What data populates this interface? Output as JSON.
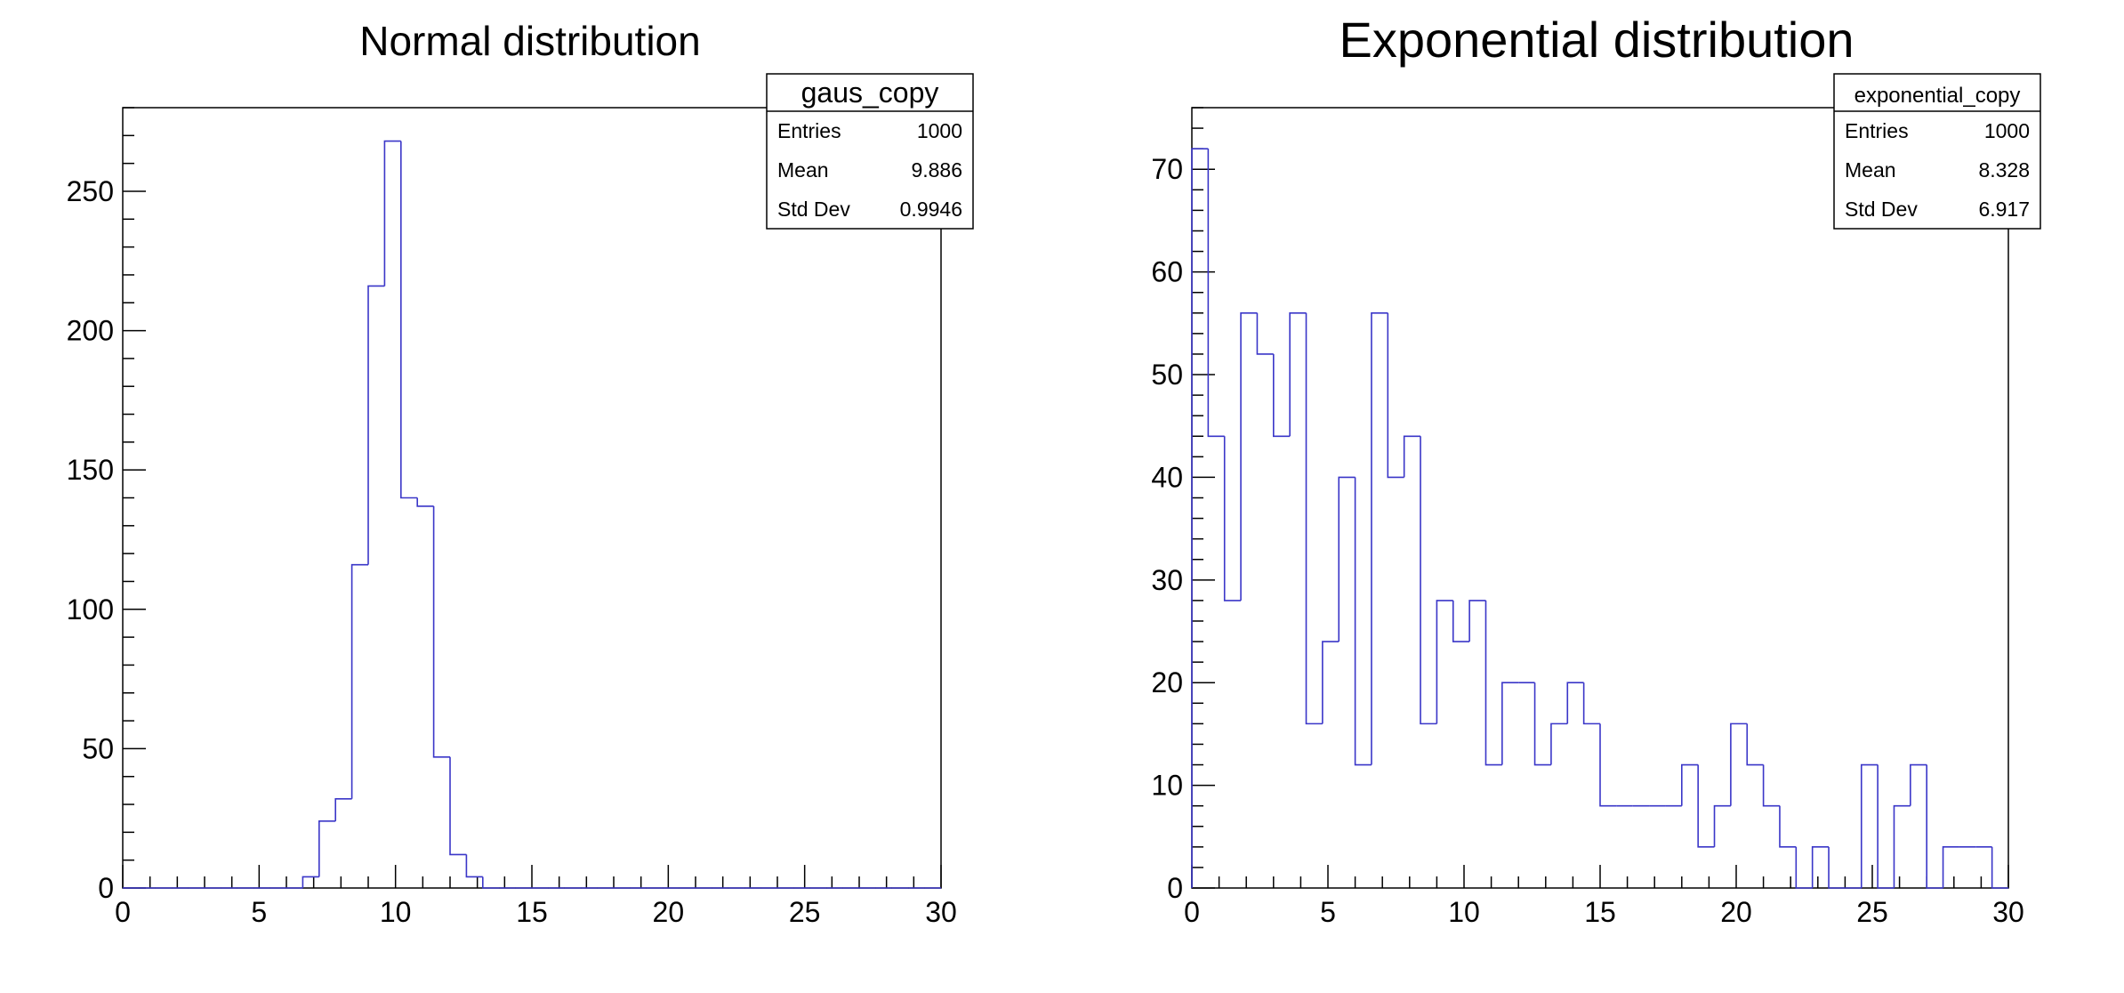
{
  "chart_data": [
    {
      "type": "bar",
      "histogram": true,
      "title": "Normal distribution",
      "xlabel": "",
      "ylabel": "",
      "xlim": [
        0,
        30
      ],
      "ylim": [
        0,
        280
      ],
      "x_ticks": [
        0,
        5,
        10,
        15,
        20,
        25,
        30
      ],
      "y_ticks": [
        0,
        50,
        100,
        150,
        200,
        250
      ],
      "bin_edges": [
        0.0,
        0.6,
        1.2,
        1.8,
        2.4,
        3.0,
        3.6,
        4.2,
        4.8,
        5.4,
        6.0,
        6.6,
        7.2,
        7.8,
        8.4,
        9.0,
        9.6,
        10.2,
        10.8,
        11.4,
        12.0,
        12.6,
        13.2,
        13.8,
        14.4,
        15.0,
        15.6,
        16.2,
        16.8,
        17.4,
        18.0,
        18.6,
        19.2,
        19.8,
        20.4,
        21.0,
        21.6,
        22.2,
        22.8,
        23.4,
        24.0,
        24.6,
        25.2,
        25.8,
        26.4,
        27.0,
        27.6,
        28.2,
        28.8,
        29.4,
        30.0
      ],
      "series": [
        {
          "values": [
            0,
            0,
            0,
            0,
            0,
            0,
            0,
            0,
            0,
            0,
            0,
            4,
            24,
            32,
            116,
            216,
            268,
            140,
            137,
            47,
            12,
            4,
            0,
            0,
            0,
            0,
            0,
            0,
            0,
            0,
            0,
            0,
            0,
            0,
            0,
            0,
            0,
            0,
            0,
            0,
            0,
            0,
            0,
            0,
            0,
            0,
            0,
            0,
            0,
            0
          ],
          "color": "#3a36c8"
        }
      ],
      "stats": {
        "name": "gaus_copy",
        "rows": [
          {
            "label": "Entries",
            "value": "1000"
          },
          {
            "label": "Mean",
            "value": "9.886"
          },
          {
            "label": "Std Dev",
            "value": "0.9946"
          }
        ]
      },
      "grid": false,
      "legend": "top-right"
    },
    {
      "type": "bar",
      "histogram": true,
      "title": "Exponential distribution",
      "xlabel": "",
      "ylabel": "",
      "xlim": [
        0,
        30
      ],
      "ylim": [
        0,
        76
      ],
      "x_ticks": [
        0,
        5,
        10,
        15,
        20,
        25,
        30
      ],
      "y_ticks": [
        0,
        10,
        20,
        30,
        40,
        50,
        60,
        70
      ],
      "bin_edges": [
        0.0,
        0.6,
        1.2,
        1.8,
        2.4,
        3.0,
        3.6,
        4.2,
        4.8,
        5.4,
        6.0,
        6.6,
        7.2,
        7.8,
        8.4,
        9.0,
        9.6,
        10.2,
        10.8,
        11.4,
        12.0,
        12.6,
        13.2,
        13.8,
        14.4,
        15.0,
        15.6,
        16.2,
        16.8,
        17.4,
        18.0,
        18.6,
        19.2,
        19.8,
        20.4,
        21.0,
        21.6,
        22.2,
        22.8,
        23.4,
        24.0,
        24.6,
        25.2,
        25.8,
        26.4,
        27.0,
        27.6,
        28.2,
        28.8,
        29.4,
        30.0
      ],
      "series": [
        {
          "values": [
            72,
            44,
            28,
            56,
            52,
            44,
            56,
            16,
            24,
            40,
            12,
            56,
            40,
            44,
            16,
            28,
            24,
            28,
            12,
            20,
            20,
            12,
            16,
            20,
            16,
            8,
            8,
            8,
            8,
            8,
            12,
            4,
            8,
            16,
            12,
            8,
            4,
            0,
            4,
            0,
            0,
            12,
            0,
            8,
            12,
            0,
            4,
            4,
            4,
            0
          ],
          "color": "#3a36c8"
        }
      ],
      "stats": {
        "name": "exponential_copy",
        "rows": [
          {
            "label": "Entries",
            "value": "1000"
          },
          {
            "label": "Mean",
            "value": "8.328"
          },
          {
            "label": "Std Dev",
            "value": "6.917"
          }
        ]
      },
      "grid": false,
      "legend": "top-right"
    }
  ]
}
